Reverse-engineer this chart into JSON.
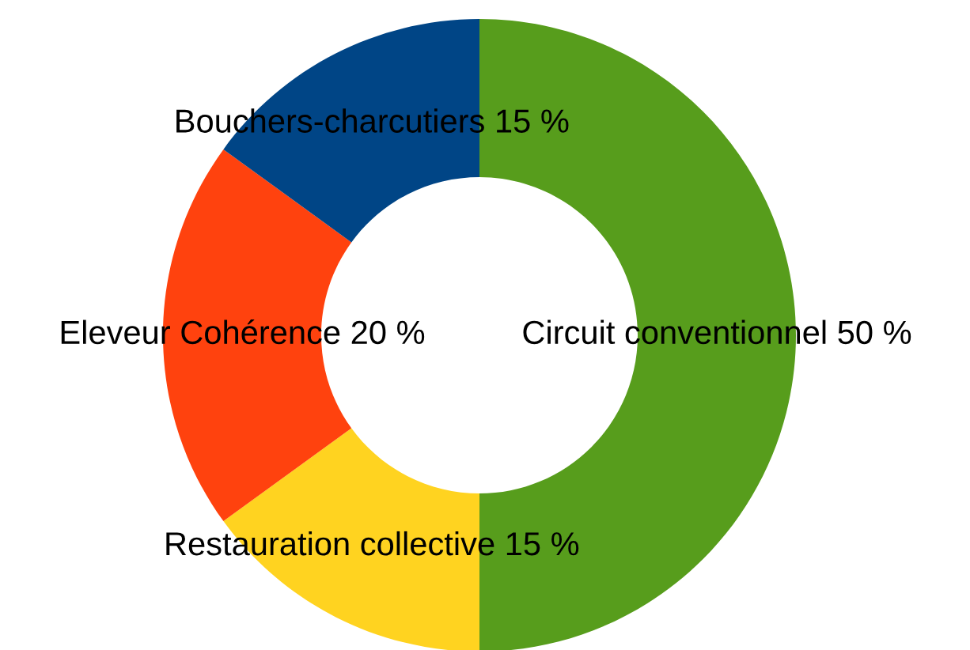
{
  "chart_data": {
    "type": "donut",
    "categories": [
      "Circuit conventionnel",
      "Restauration collective",
      "Eleveur Cohérence",
      "Bouchers-charcutiers"
    ],
    "values": [
      50,
      15,
      20,
      15
    ],
    "value_labels": [
      "50 %",
      "15 %",
      "20 %",
      "15 %"
    ],
    "colors": [
      "#579d1c",
      "#ffd320",
      "#ff420e",
      "#004586"
    ],
    "legend": false
  }
}
